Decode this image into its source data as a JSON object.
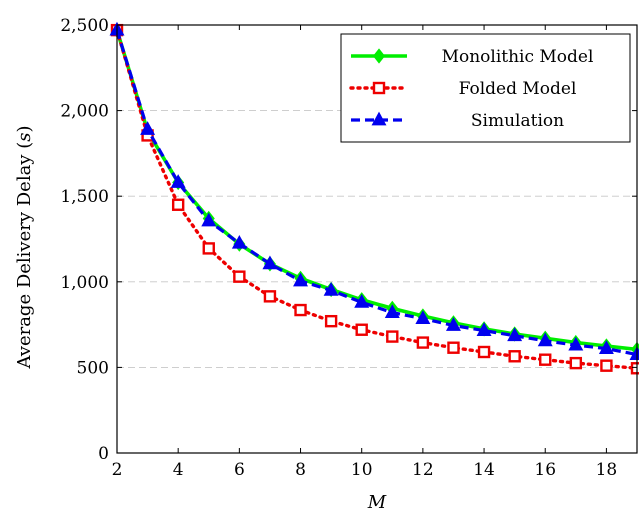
{
  "chart_data": {
    "type": "line",
    "xlabel": "M",
    "ylabel": "Average Delivery Delay (s)",
    "ylabel_main": "Average Delivery Delay (",
    "ylabel_unit": "s",
    "ylabel_close": ")",
    "xlim": [
      2,
      19
    ],
    "ylim": [
      0,
      2500
    ],
    "x_ticks": [
      2,
      4,
      6,
      8,
      10,
      12,
      14,
      16,
      18
    ],
    "y_ticks": [
      0,
      500,
      1000,
      1500,
      2000,
      2500
    ],
    "y_tick_labels": [
      "0",
      "500",
      "1,000",
      "1,500",
      "2,000",
      "2,500"
    ],
    "grid": "horizontal-dashed",
    "legend_position": "top-right",
    "x": [
      2,
      3,
      4,
      5,
      6,
      7,
      8,
      9,
      10,
      11,
      12,
      13,
      14,
      15,
      16,
      17,
      18,
      19
    ],
    "series": [
      {
        "name": "Monolithic Model",
        "color": "#00ee00",
        "marker": "diamond",
        "dash": "solid",
        "values": [
          2470,
          1880,
          1580,
          1370,
          1220,
          1105,
          1020,
          955,
          895,
          845,
          800,
          760,
          725,
          695,
          670,
          645,
          625,
          605
        ]
      },
      {
        "name": "Folded Model",
        "color": "#ee0000",
        "marker": "square",
        "dash": "dotted",
        "values": [
          2470,
          1855,
          1450,
          1195,
          1030,
          915,
          835,
          770,
          720,
          680,
          645,
          615,
          590,
          565,
          545,
          525,
          510,
          495
        ]
      },
      {
        "name": "Simulation",
        "color": "#0000ee",
        "marker": "triangle",
        "dash": "dashed",
        "values": [
          2470,
          1890,
          1580,
          1355,
          1225,
          1105,
          1005,
          950,
          880,
          820,
          785,
          745,
          715,
          685,
          655,
          630,
          610,
          575
        ]
      }
    ]
  }
}
